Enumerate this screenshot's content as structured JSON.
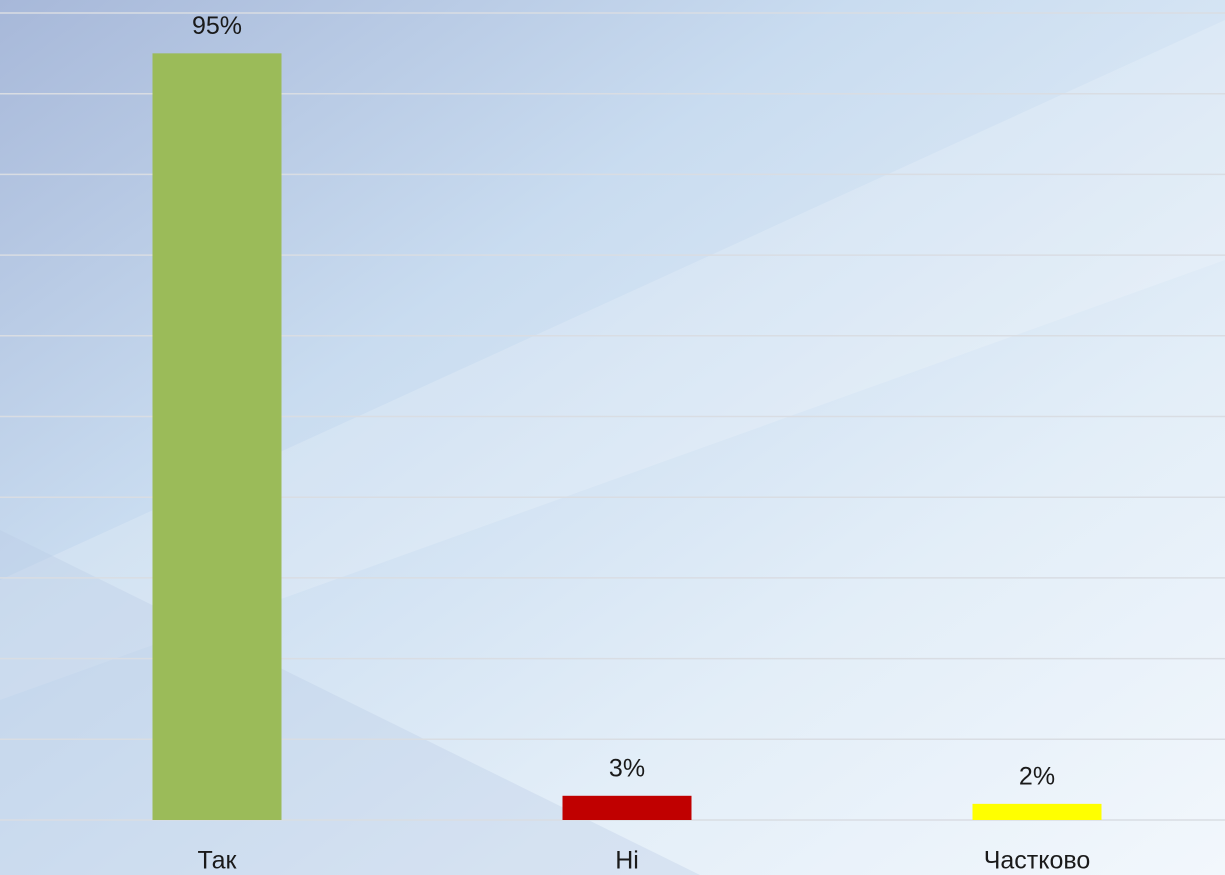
{
  "chart_data": {
    "type": "bar",
    "categories": [
      "Так",
      "Ні",
      "Частково"
    ],
    "values": [
      95,
      3,
      2
    ],
    "value_labels": [
      "95%",
      "3%",
      "2%"
    ],
    "colors": [
      "#9bbb59",
      "#c00000",
      "#ffff00"
    ],
    "ylim": [
      0,
      100
    ],
    "yticks": [
      0,
      10,
      20,
      30,
      40,
      50,
      60,
      70,
      80,
      90,
      100
    ],
    "grid": true
  }
}
